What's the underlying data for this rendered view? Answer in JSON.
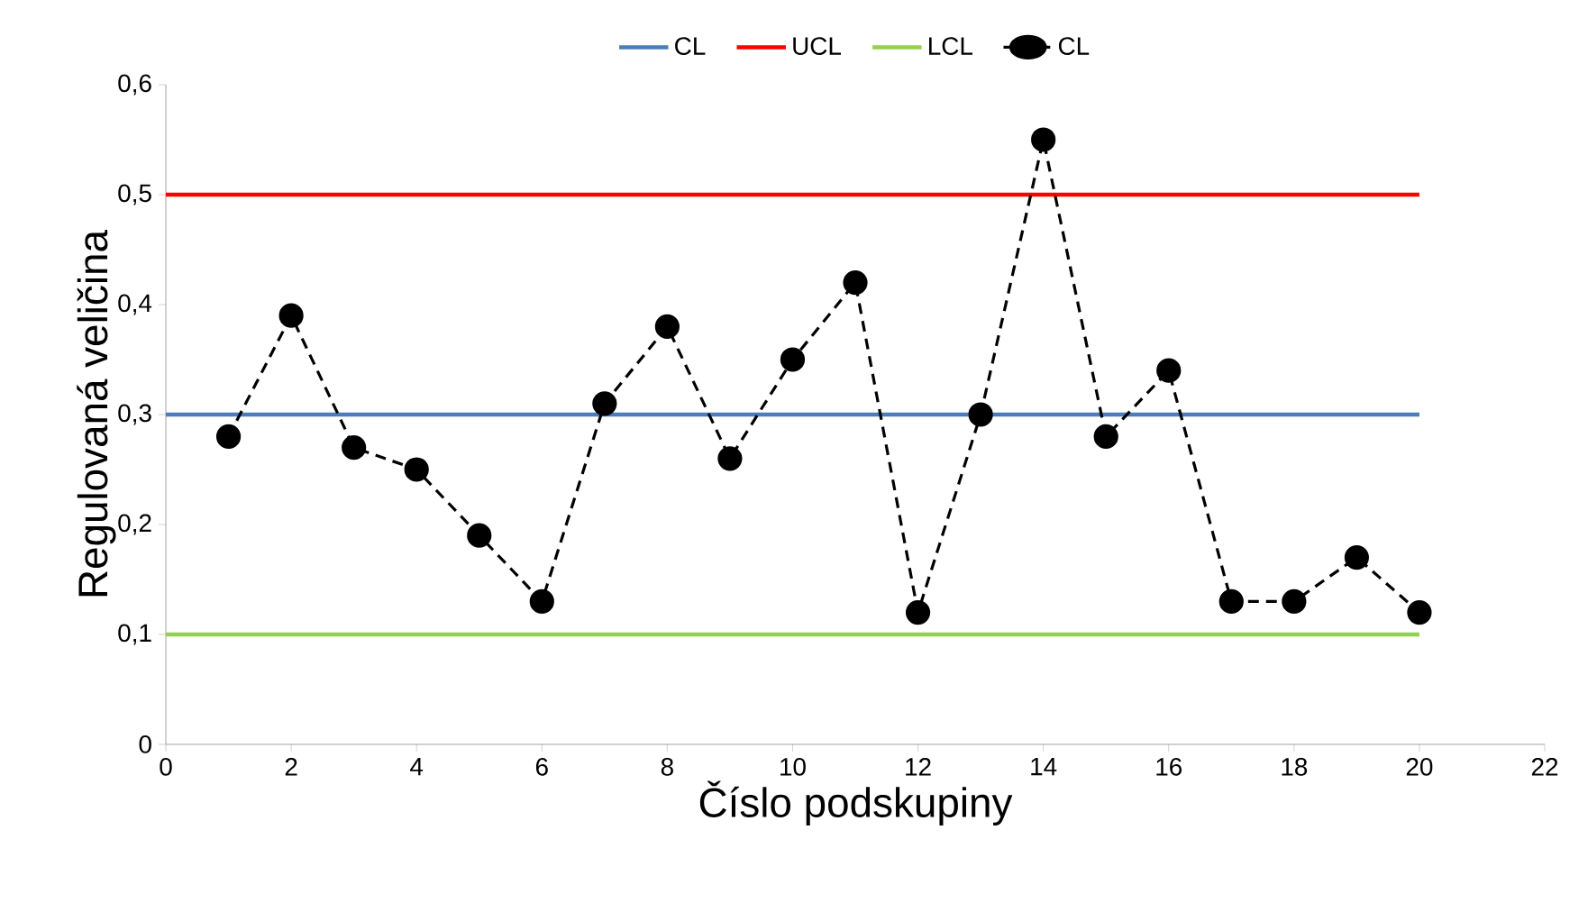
{
  "chart_data": {
    "type": "line",
    "xlabel": "Číslo podskupiny",
    "ylabel": "Regulovaná veličina",
    "xlim": [
      0,
      22
    ],
    "xticks": [
      0,
      2,
      4,
      6,
      8,
      10,
      12,
      14,
      16,
      18,
      20,
      22
    ],
    "ylim": [
      0,
      0.6
    ],
    "yticks": [
      0,
      {
        "value": 0.1,
        "label": "0,1"
      },
      {
        "value": 0.2,
        "label": "0,2"
      },
      {
        "value": 0.3,
        "label": "0,3"
      },
      {
        "value": 0.4,
        "label": "0,4"
      },
      {
        "value": 0.5,
        "label": "0,5"
      },
      {
        "value": 0.6,
        "label": "0,6"
      }
    ],
    "grid": false,
    "legend": "top",
    "series": [
      {
        "name": "CL",
        "color": "#4a7ebb",
        "x": [
          0,
          20
        ],
        "values": [
          0.3,
          0.3
        ],
        "marker": "none",
        "line_style": "solid"
      },
      {
        "name": "UCL",
        "color": "#ff0000",
        "x": [
          0,
          20
        ],
        "values": [
          0.5,
          0.5
        ],
        "marker": "none",
        "line_style": "solid"
      },
      {
        "name": "LCL",
        "color": "#92d050",
        "x": [
          0,
          20
        ],
        "values": [
          0.1,
          0.1
        ],
        "marker": "none",
        "line_style": "solid"
      },
      {
        "name": "CL",
        "color": "#000000",
        "x": [
          1,
          2,
          3,
          4,
          5,
          6,
          7,
          8,
          9,
          10,
          11,
          12,
          13,
          14,
          15,
          16,
          17,
          18,
          19,
          20
        ],
        "values": [
          0.28,
          0.39,
          0.27,
          0.25,
          0.19,
          0.13,
          0.31,
          0.38,
          0.26,
          0.35,
          0.42,
          0.12,
          0.3,
          0.55,
          0.28,
          0.34,
          0.13,
          0.13,
          0.17,
          0.12
        ],
        "marker": "circle",
        "line_style": "dashed"
      }
    ]
  }
}
